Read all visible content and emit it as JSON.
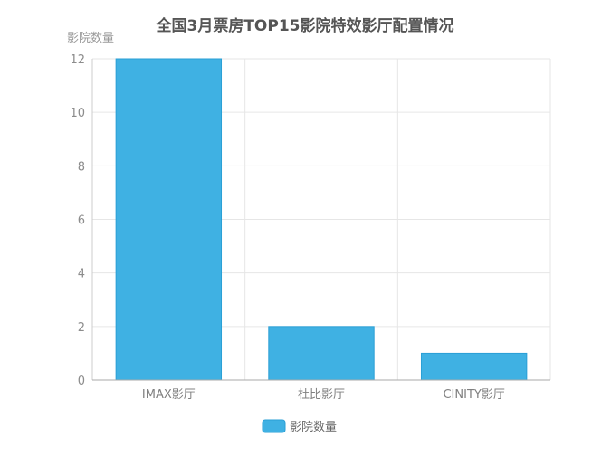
{
  "chart_data": {
    "type": "bar",
    "title": "全国3月票房TOP15影院特效影厅配置情况",
    "xlabel": "",
    "ylabel": "影院数量",
    "categories": [
      "IMAX影厅",
      "杜比影厅",
      "CINITY影厅"
    ],
    "series": [
      {
        "name": "影院数量",
        "values": [
          12,
          2,
          1
        ]
      }
    ],
    "ylim": [
      0,
      12
    ],
    "yticks": [
      0,
      2,
      4,
      6,
      8,
      10,
      12
    ],
    "grid": true,
    "legend": "bottom-center",
    "colors": {
      "bar": "#3fb1e3",
      "bar_edge": "#2a9fd6",
      "grid": "#e6e6e6",
      "axis": "#cccccc"
    }
  }
}
